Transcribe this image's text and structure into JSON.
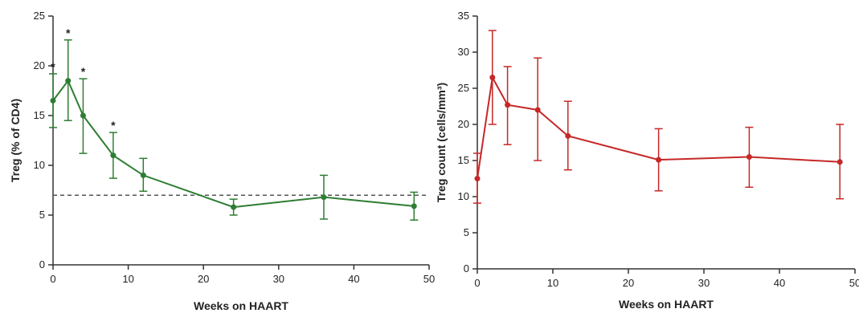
{
  "chart_data": [
    {
      "type": "line",
      "title": "",
      "xlabel": "Weeks on  HAART",
      "ylabel": "Treg (% of CD4)",
      "xlim": [
        0,
        50
      ],
      "ylim": [
        0,
        25
      ],
      "xticks": [
        "0",
        "10",
        "20",
        "30",
        "40",
        "50"
      ],
      "yticks": [
        "0",
        "5",
        "10",
        "15",
        "20",
        "25"
      ],
      "color": "#2e7d32",
      "reference_line": {
        "y": 7,
        "style": "dashed",
        "color": "#555555"
      },
      "series": [
        {
          "x": [
            0,
            2,
            4,
            8,
            12,
            24,
            36,
            48
          ],
          "values": [
            16.5,
            18.5,
            15,
            11,
            9,
            5.8,
            6.8,
            5.9
          ],
          "error_low": [
            13.8,
            14.5,
            11.2,
            8.7,
            7.4,
            5.0,
            4.6,
            4.5
          ],
          "error_high": [
            19.2,
            22.6,
            18.7,
            13.3,
            10.7,
            6.6,
            9.0,
            7.3
          ],
          "significance": [
            "*",
            "*",
            "*",
            "*",
            "",
            "",
            "",
            ""
          ]
        }
      ]
    },
    {
      "type": "line",
      "title": "",
      "xlabel": "Weeks on  HAART",
      "ylabel": "Treg count (cells/mm³)",
      "xlim": [
        0,
        50
      ],
      "ylim": [
        0,
        35
      ],
      "xticks": [
        "0",
        "10",
        "20",
        "30",
        "40",
        "50"
      ],
      "yticks": [
        "0",
        "5",
        "10",
        "15",
        "20",
        "25",
        "30",
        "35"
      ],
      "color": "#c62828",
      "series": [
        {
          "x": [
            0,
            2,
            4,
            8,
            12,
            24,
            36,
            48
          ],
          "values": [
            12.5,
            26.5,
            22.7,
            22,
            18.4,
            15.1,
            15.5,
            14.8
          ],
          "error_low": [
            9.1,
            20,
            17.2,
            15,
            13.7,
            10.8,
            11.3,
            9.7
          ],
          "error_high": [
            16,
            33,
            28,
            29.2,
            23.2,
            19.4,
            19.6,
            20
          ]
        }
      ]
    }
  ]
}
